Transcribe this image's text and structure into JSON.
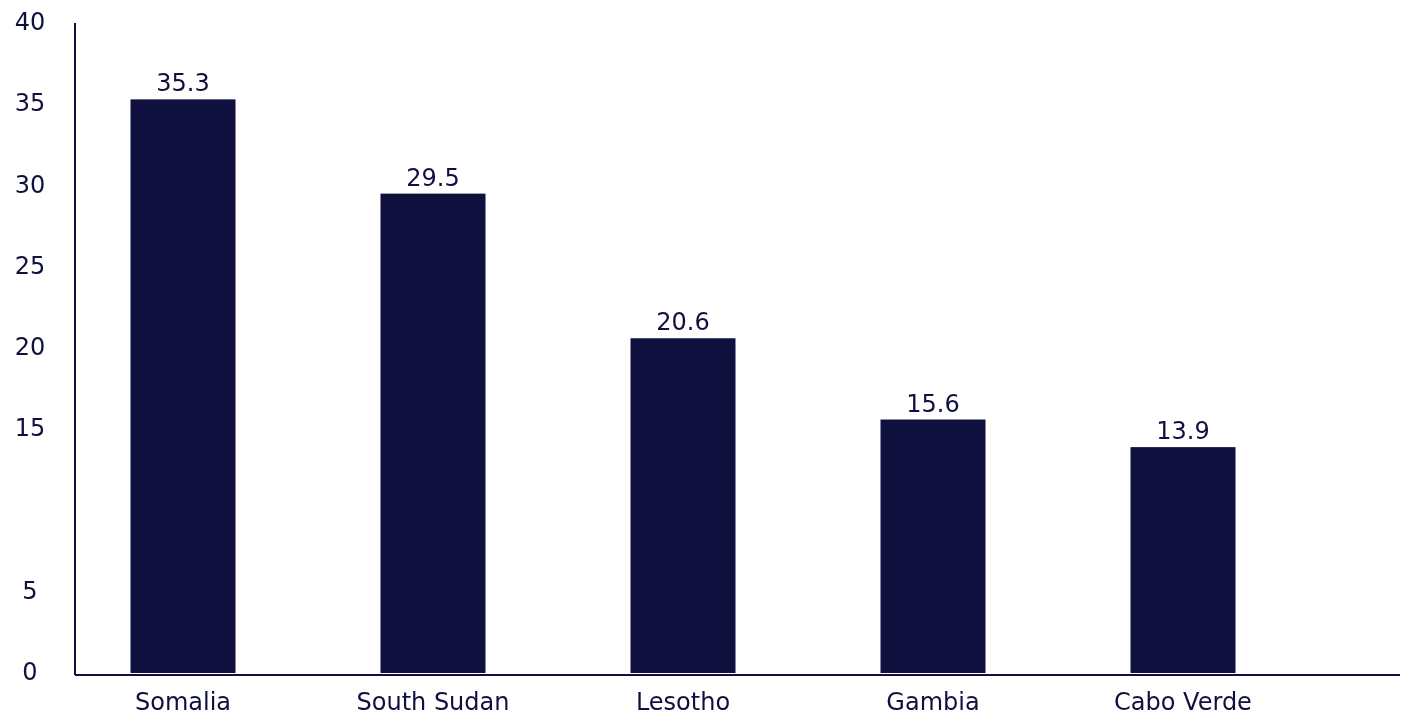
{
  "chart_data": {
    "type": "bar",
    "categories": [
      "Somalia",
      "South Sudan",
      "Lesotho",
      "Gambia",
      "Cabo Verde"
    ],
    "values": [
      35.3,
      29.5,
      20.6,
      15.6,
      13.9
    ],
    "color": "#10103f",
    "ylim": [
      0,
      40
    ],
    "yticks": [
      0,
      5,
      15,
      20,
      25,
      30,
      35,
      40
    ],
    "grid": false,
    "data_labels": true
  }
}
